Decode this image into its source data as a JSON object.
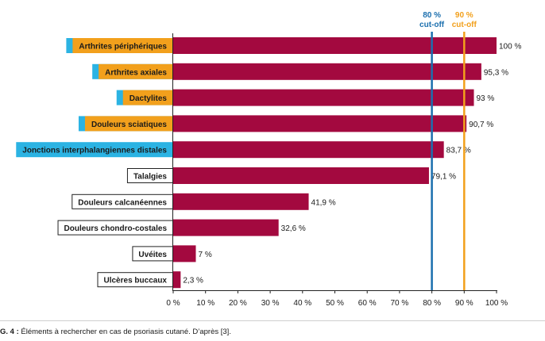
{
  "chart_data": {
    "type": "bar",
    "orientation": "horizontal",
    "categories": [
      "Arthrites périphériques",
      "Arthrites axiales",
      "Dactylites",
      "Douleurs sciatiques",
      "Jonctions interphalangiennes distales",
      "Talalgies",
      "Douleurs calcanéennes",
      "Douleurs chondro-costales",
      "Uvéites",
      "Ulcères buccaux"
    ],
    "values": [
      100,
      95.3,
      93,
      90.7,
      83.7,
      79.1,
      41.9,
      32.6,
      7,
      2.3
    ],
    "value_labels": [
      "100 %",
      "95,3 %",
      "93 %",
      "90,7 %",
      "83,7 %",
      "79,1 %",
      "41,9 %",
      "32,6 %",
      "7 %",
      "2,3 %"
    ],
    "label_highlight": [
      "orange-blue",
      "orange-blue",
      "orange-blue",
      "orange-blue",
      "blue",
      "none",
      "none",
      "none",
      "none",
      "none"
    ],
    "xlim": [
      0,
      100
    ],
    "xticks": [
      0,
      10,
      20,
      30,
      40,
      50,
      60,
      70,
      80,
      90,
      100
    ],
    "xtick_labels": [
      "0 %",
      "10 %",
      "20 %",
      "30 %",
      "40 %",
      "50 %",
      "60 %",
      "70 %",
      "80 %",
      "90 %",
      "100 %"
    ],
    "reference_lines": [
      {
        "value": 80,
        "label_line1": "80 %",
        "label_line2": "cut-off",
        "color": "#1b6fae"
      },
      {
        "value": 90,
        "label_line1": "90 %",
        "label_line2": "cut-off",
        "color": "#f2a01c"
      }
    ],
    "grid": false,
    "colors": {
      "bar": "#a3093f",
      "blue_tab": "#2bb3e3",
      "orange_tab": "#f2a01c"
    }
  },
  "caption": {
    "prefix": "G. 4 :",
    "text": " Éléments à rechercher en cas de psoriasis cutané. D’après [3]."
  }
}
